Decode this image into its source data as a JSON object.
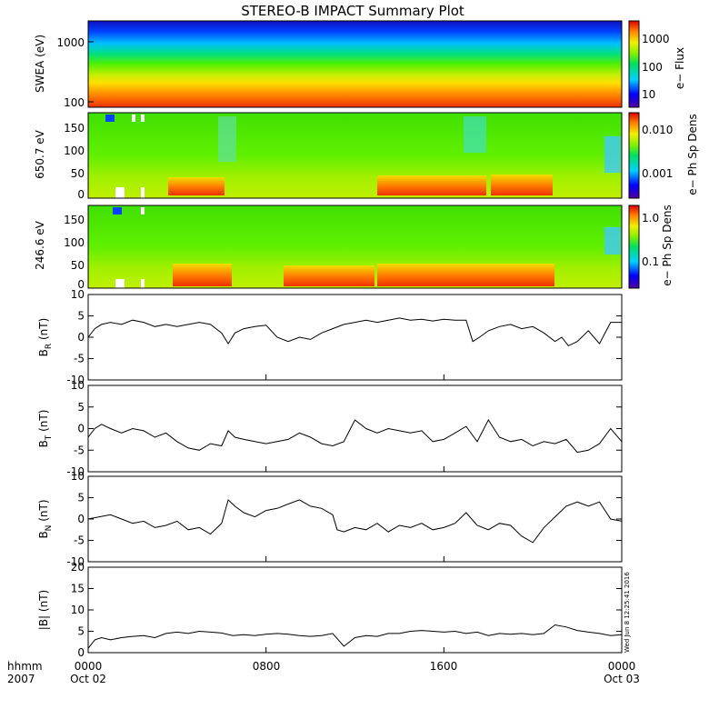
{
  "title": "STEREO-B IMPACT Summary Plot",
  "stamp": "Wed Jun  8 12:25:41 2016",
  "x_axis": {
    "format_label": "hhmm",
    "year_label": "2007",
    "ticks": [
      {
        "hhmm": "0000",
        "date": "Oct 02"
      },
      {
        "hhmm": "0800",
        "date": ""
      },
      {
        "hhmm": "1600",
        "date": ""
      },
      {
        "hhmm": "0000",
        "date": "Oct 03"
      }
    ],
    "xlim_hours": [
      0,
      24
    ]
  },
  "chart_data": [
    {
      "type": "heatmap",
      "panel": "swea",
      "ylabel": "SWEA (eV)",
      "yscale": "log",
      "ylim": [
        90,
        2000
      ],
      "yticks": [
        "1000",
        "100"
      ],
      "colorbar": {
        "label": "e− Flux",
        "ticks": [
          "1000",
          "100",
          "10"
        ],
        "scale": "log"
      },
      "colormap": [
        "#0000a0",
        "#0030ff",
        "#00c8ff",
        "#00e070",
        "#60f000",
        "#f0f000",
        "#ff8000",
        "#f00000"
      ]
    },
    {
      "type": "heatmap",
      "panel": "pad650",
      "ylabel": "650.7 eV",
      "ylim": [
        0,
        180
      ],
      "yticks": [
        "150",
        "100",
        "50",
        "0"
      ],
      "colorbar": {
        "label": "e− Ph Sp Dens",
        "ticks": [
          "0.010",
          "0.001"
        ],
        "scale": "log"
      }
    },
    {
      "type": "heatmap",
      "panel": "pad246",
      "ylabel": "246.6 eV",
      "ylim": [
        0,
        180
      ],
      "yticks": [
        "150",
        "100",
        "50",
        "0"
      ],
      "colorbar": {
        "label": "e− Ph Sp Dens",
        "ticks": [
          "1.0",
          "0.1"
        ],
        "scale": "log"
      }
    },
    {
      "type": "line",
      "panel": "br",
      "ylabel_main": "B",
      "ylabel_sub": "R",
      "ylabel_unit": " (nT)",
      "ylim": [
        -10,
        10
      ],
      "yticks": [
        "10",
        "5",
        "0",
        "-5",
        "-10"
      ],
      "x": [
        0,
        0.3,
        0.6,
        1,
        1.5,
        2,
        2.5,
        3,
        3.5,
        4,
        4.5,
        5,
        5.5,
        6,
        6.3,
        6.6,
        7,
        7.5,
        8,
        8.5,
        9,
        9.5,
        10,
        10.5,
        11,
        11.5,
        12,
        12.5,
        13,
        13.5,
        14,
        14.5,
        15,
        15.5,
        16,
        16.5,
        17,
        17.3,
        17.6,
        18,
        18.5,
        19,
        19.5,
        20,
        20.5,
        21,
        21.3,
        21.6,
        22,
        22.5,
        23,
        23.5,
        24
      ],
      "y": [
        0,
        2,
        3,
        3.5,
        3,
        4,
        3.5,
        2.5,
        3,
        2.5,
        3,
        3.5,
        3,
        1,
        -1.5,
        1,
        2,
        2.5,
        2.8,
        0,
        -1,
        0,
        -0.5,
        1,
        2,
        3,
        3.5,
        4,
        3.5,
        4,
        4.5,
        4,
        4.2,
        3.8,
        4.2,
        4,
        4,
        -1,
        0,
        1.5,
        2.5,
        3,
        2,
        2.5,
        1,
        -1,
        0,
        -2,
        -1,
        1.5,
        -1.5,
        3.5,
        3.5
      ]
    },
    {
      "type": "line",
      "panel": "bt",
      "ylabel_main": "B",
      "ylabel_sub": "T",
      "ylabel_unit": " (nT)",
      "ylim": [
        -10,
        10
      ],
      "yticks": [
        "10",
        "5",
        "0",
        "-5",
        "-10"
      ],
      "x": [
        0,
        0.3,
        0.6,
        1,
        1.5,
        2,
        2.5,
        3,
        3.5,
        4,
        4.5,
        5,
        5.5,
        6,
        6.3,
        6.6,
        7,
        7.5,
        8,
        8.5,
        9,
        9.5,
        10,
        10.5,
        11,
        11.5,
        12,
        12.5,
        13,
        13.5,
        14,
        14.5,
        15,
        15.5,
        16,
        16.5,
        17,
        17.5,
        18,
        18.5,
        19,
        19.5,
        20,
        20.5,
        21,
        21.5,
        22,
        22.5,
        23,
        23.5,
        24
      ],
      "y": [
        -2,
        0,
        1,
        0,
        -1,
        0,
        -0.5,
        -2,
        -1,
        -3,
        -4.5,
        -5,
        -3.5,
        -4,
        -0.5,
        -2,
        -2.5,
        -3,
        -3.5,
        -3,
        -2.5,
        -1,
        -2,
        -3.5,
        -4,
        -3,
        2,
        0,
        -1,
        0,
        -0.5,
        -1,
        -0.5,
        -3,
        -2.5,
        -1,
        0.5,
        -3,
        2,
        -2,
        -3,
        -2.5,
        -4,
        -3,
        -3.5,
        -2.5,
        -5.5,
        -5,
        -3.5,
        0,
        -3
      ]
    },
    {
      "type": "line",
      "panel": "bn",
      "ylabel_main": "B",
      "ylabel_sub": "N",
      "ylabel_unit": " (nT)",
      "ylim": [
        -10,
        10
      ],
      "yticks": [
        "10",
        "5",
        "0",
        "-5",
        "-10"
      ],
      "x": [
        0,
        0.5,
        1,
        1.5,
        2,
        2.5,
        3,
        3.5,
        4,
        4.5,
        5,
        5.5,
        6,
        6.3,
        6.6,
        7,
        7.5,
        8,
        8.5,
        9,
        9.5,
        10,
        10.5,
        11,
        11.2,
        11.5,
        12,
        12.5,
        13,
        13.5,
        14,
        14.5,
        15,
        15.5,
        16,
        16.5,
        17,
        17.5,
        18,
        18.5,
        19,
        19.5,
        20,
        20.5,
        21,
        21.5,
        22,
        22.5,
        23,
        23.5,
        24
      ],
      "y": [
        0,
        0.5,
        1,
        0,
        -1,
        -0.5,
        -2,
        -1.5,
        -0.5,
        -2.5,
        -2,
        -3.5,
        -1,
        4.5,
        3,
        1.5,
        0.5,
        2,
        2.5,
        3.5,
        4.5,
        3,
        2.5,
        1,
        -2.5,
        -3,
        -2,
        -2.5,
        -1,
        -3,
        -1.5,
        -2,
        -1,
        -2.5,
        -2,
        -1,
        1.5,
        -1.5,
        -2.5,
        -1,
        -1.5,
        -4,
        -5.5,
        -2,
        0.5,
        3,
        4,
        3,
        4,
        0,
        -0.5
      ]
    },
    {
      "type": "line",
      "panel": "bmag",
      "ylabel_main": "|B| (nT)",
      "ylim": [
        0,
        20
      ],
      "yticks": [
        "20",
        "15",
        "10",
        "5",
        "0"
      ],
      "x": [
        0,
        0.3,
        0.6,
        1,
        1.5,
        2,
        2.5,
        3,
        3.5,
        4,
        4.5,
        5,
        5.5,
        6,
        6.5,
        7,
        7.5,
        8,
        8.5,
        9,
        9.5,
        10,
        10.5,
        11,
        11.5,
        12,
        12.5,
        13,
        13.5,
        14,
        14.5,
        15,
        15.5,
        16,
        16.5,
        17,
        17.5,
        18,
        18.5,
        19,
        19.5,
        20,
        20.5,
        21,
        21.5,
        22,
        22.5,
        23,
        23.5,
        24
      ],
      "y": [
        1,
        3,
        3.5,
        3,
        3.5,
        3.8,
        4,
        3.5,
        4.5,
        4.8,
        4.5,
        5,
        4.8,
        4.6,
        4,
        4.2,
        4,
        4.3,
        4.5,
        4.3,
        4,
        3.8,
        4,
        4.5,
        1.5,
        3.5,
        4,
        3.8,
        4.5,
        4.5,
        5,
        5.2,
        5,
        4.8,
        5,
        4.5,
        4.8,
        4,
        4.5,
        4.3,
        4.5,
        4.2,
        4.5,
        6.5,
        6,
        5.2,
        4.8,
        4.5,
        4,
        4.2
      ]
    }
  ]
}
